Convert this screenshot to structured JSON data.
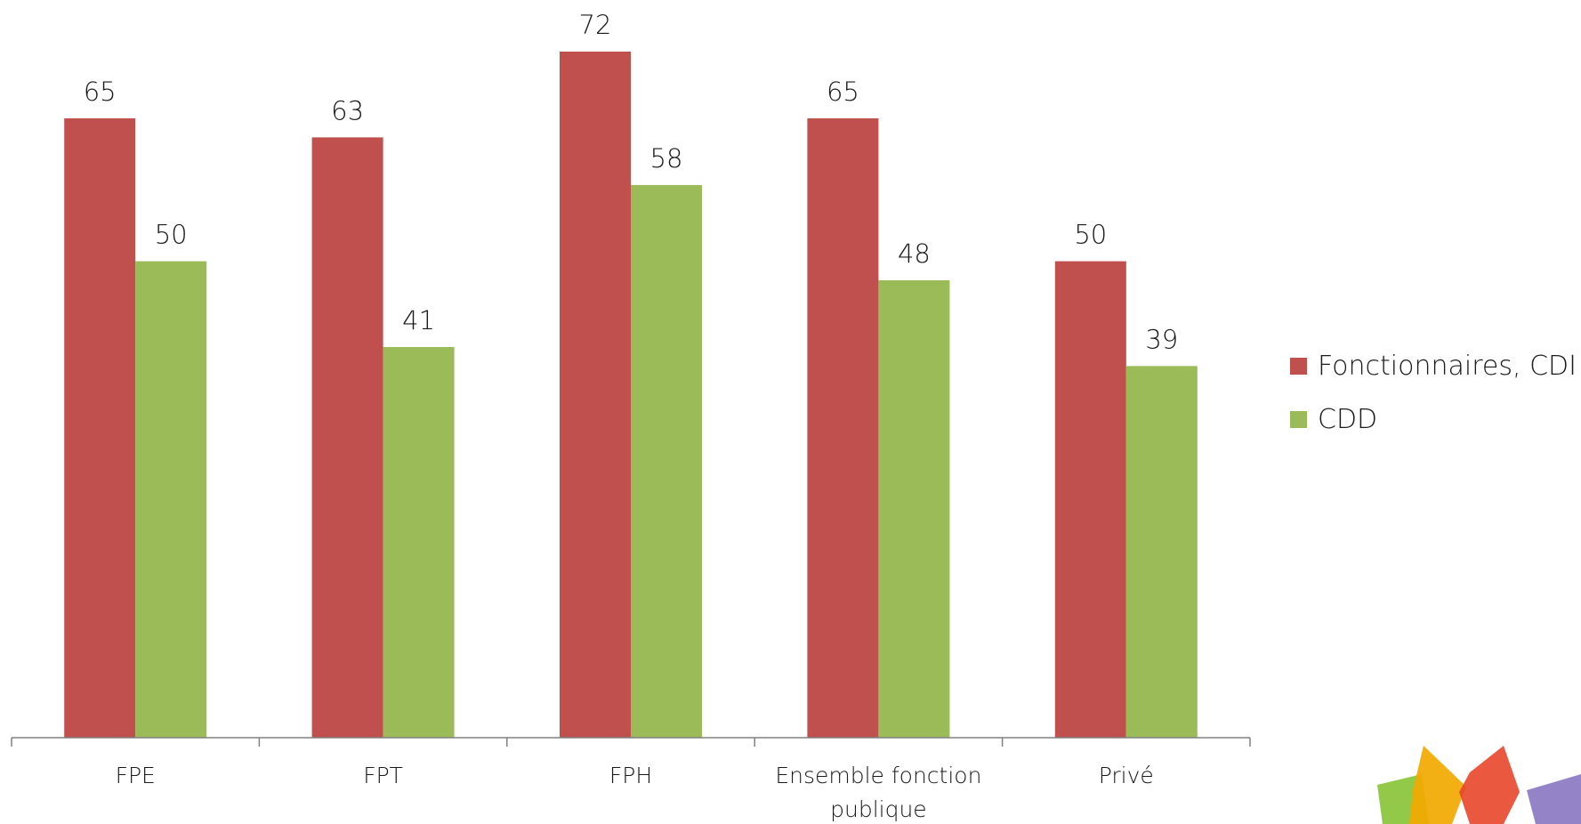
{
  "chart_data": {
    "type": "bar",
    "categories": [
      [
        "FPE"
      ],
      [
        "FPT"
      ],
      [
        "FPH"
      ],
      [
        "Ensemble fonction",
        "publique"
      ],
      [
        "Privé"
      ]
    ],
    "series": [
      {
        "name": "Fonctionnaires, CDI",
        "color": "#c0504d",
        "values": [
          65,
          63,
          72,
          65,
          50
        ]
      },
      {
        "name": "CDD",
        "color": "#9bbb59",
        "values": [
          50,
          41,
          58,
          48,
          39
        ]
      }
    ],
    "title": "",
    "xlabel": "",
    "ylabel": "",
    "ylim": [
      0,
      72
    ],
    "grid": false,
    "data_labels": true,
    "legend_position": "right"
  },
  "legend": {
    "items": [
      {
        "label": "Fonctionnaires, CDI",
        "color": "#c0504d"
      },
      {
        "label": "CDD",
        "color": "#9bbb59"
      }
    ]
  },
  "logo": {
    "description_icon": "colorful-squares-logo-icon",
    "colors": [
      "#8dc63f",
      "#f2a900",
      "#e8462a",
      "#8e7cc3"
    ]
  }
}
